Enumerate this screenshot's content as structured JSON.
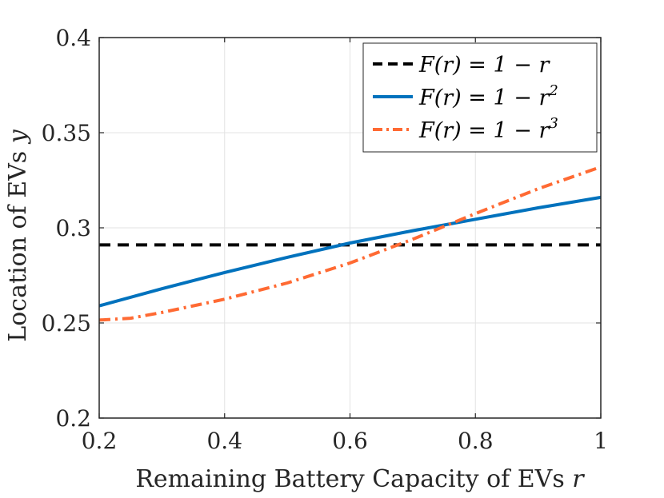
{
  "chart_data": {
    "type": "line",
    "title": "",
    "xlabel": "Remaining Battery Capacity of EVs",
    "xlabel_var": "r",
    "ylabel": "Location of EVs",
    "ylabel_var": "y",
    "xlim": [
      0.2,
      1.0
    ],
    "ylim": [
      0.2,
      0.4
    ],
    "xticks": [
      0.2,
      0.4,
      0.6,
      0.8,
      1.0
    ],
    "xtick_labels": [
      "0.2",
      "0.4",
      "0.6",
      "0.8",
      "1"
    ],
    "yticks": [
      0.2,
      0.25,
      0.3,
      0.35,
      0.4
    ],
    "ytick_labels": [
      "0.2",
      "0.25",
      "0.3",
      "0.35",
      "0.4"
    ],
    "grid": true,
    "legend_position": "top-right",
    "series": [
      {
        "name": "F(r) = 1 − r",
        "legend_main": "F(r) = 1 − r",
        "legend_sup": "",
        "color": "#000000",
        "style": "dashed",
        "x": [
          0.2,
          0.3,
          0.4,
          0.5,
          0.6,
          0.7,
          0.8,
          0.9,
          1.0
        ],
        "y": [
          0.291,
          0.291,
          0.291,
          0.291,
          0.291,
          0.291,
          0.291,
          0.291,
          0.291
        ]
      },
      {
        "name": "F(r) = 1 − r^2",
        "legend_main": "F(r) = 1 − r",
        "legend_sup": "2",
        "color": "#0072BD",
        "style": "solid",
        "x": [
          0.2,
          0.3,
          0.4,
          0.5,
          0.6,
          0.7,
          0.8,
          0.9,
          1.0
        ],
        "y": [
          0.259,
          0.268,
          0.2765,
          0.2845,
          0.292,
          0.2985,
          0.3045,
          0.3105,
          0.316
        ]
      },
      {
        "name": "F(r) = 1 − r^3",
        "legend_main": "F(r) = 1 − r",
        "legend_sup": "3",
        "color": "#FF6A33",
        "style": "dashdot",
        "x": [
          0.2,
          0.25,
          0.3,
          0.4,
          0.5,
          0.6,
          0.7,
          0.8,
          0.9,
          1.0
        ],
        "y": [
          0.2515,
          0.2525,
          0.2555,
          0.2625,
          0.271,
          0.2815,
          0.294,
          0.3075,
          0.3205,
          0.332
        ]
      }
    ]
  }
}
